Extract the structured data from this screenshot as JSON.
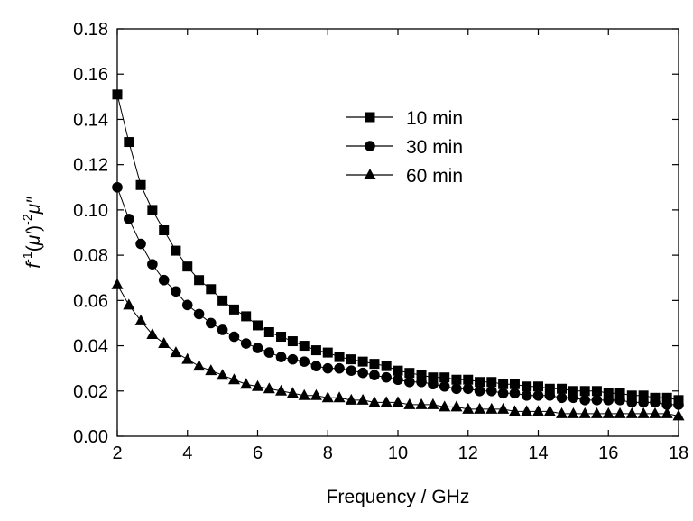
{
  "chart_data": {
    "type": "line",
    "xlabel": "Frequency / GHz",
    "ylabel": {
      "f": "f",
      "exp1": "-1",
      "open": "(",
      "mu1": "μ",
      "prime": "′",
      "close": ")",
      "exp2": "-2",
      "mu2": "μ",
      "dprime": "″"
    },
    "xlim": [
      2,
      18
    ],
    "ylim": [
      0,
      0.18
    ],
    "x_ticks": [
      "2",
      "4",
      "6",
      "8",
      "10",
      "12",
      "14",
      "16",
      "18"
    ],
    "y_ticks": [
      "0.00",
      "0.02",
      "0.04",
      "0.06",
      "0.08",
      "0.10",
      "0.12",
      "0.14",
      "0.16",
      "0.18"
    ],
    "x_tick_values": [
      2,
      4,
      6,
      8,
      10,
      12,
      14,
      16,
      18
    ],
    "y_tick_values": [
      0,
      0.02,
      0.04,
      0.06,
      0.08,
      0.1,
      0.12,
      0.14,
      0.16,
      0.18
    ],
    "grid": false,
    "legend": "top-center",
    "x": [
      2.0,
      2.33,
      2.67,
      3.0,
      3.33,
      3.67,
      4.0,
      4.33,
      4.67,
      5.0,
      5.33,
      5.67,
      6.0,
      6.33,
      6.67,
      7.0,
      7.33,
      7.67,
      8.0,
      8.33,
      8.67,
      9.0,
      9.33,
      9.67,
      10.0,
      10.33,
      10.67,
      11.0,
      11.33,
      11.67,
      12.0,
      12.33,
      12.67,
      13.0,
      13.33,
      13.67,
      14.0,
      14.33,
      14.67,
      15.0,
      15.33,
      15.67,
      16.0,
      16.33,
      16.67,
      17.0,
      17.33,
      17.67,
      18.0
    ],
    "series": [
      {
        "name": "10 min",
        "marker": "square",
        "values": [
          0.151,
          0.13,
          0.111,
          0.1,
          0.091,
          0.082,
          0.075,
          0.069,
          0.065,
          0.06,
          0.056,
          0.053,
          0.049,
          0.046,
          0.044,
          0.042,
          0.04,
          0.038,
          0.037,
          0.035,
          0.034,
          0.033,
          0.032,
          0.031,
          0.029,
          0.028,
          0.027,
          0.026,
          0.026,
          0.025,
          0.025,
          0.024,
          0.024,
          0.023,
          0.023,
          0.022,
          0.022,
          0.021,
          0.021,
          0.02,
          0.02,
          0.02,
          0.019,
          0.019,
          0.018,
          0.018,
          0.017,
          0.017,
          0.016
        ]
      },
      {
        "name": "30 min",
        "marker": "circle",
        "values": [
          0.11,
          0.096,
          0.085,
          0.076,
          0.069,
          0.064,
          0.058,
          0.054,
          0.05,
          0.047,
          0.044,
          0.041,
          0.039,
          0.037,
          0.035,
          0.034,
          0.033,
          0.031,
          0.03,
          0.03,
          0.029,
          0.028,
          0.027,
          0.026,
          0.025,
          0.024,
          0.024,
          0.023,
          0.022,
          0.021,
          0.021,
          0.02,
          0.02,
          0.019,
          0.019,
          0.018,
          0.018,
          0.018,
          0.017,
          0.017,
          0.016,
          0.016,
          0.016,
          0.016,
          0.015,
          0.015,
          0.015,
          0.014,
          0.014
        ]
      },
      {
        "name": "60 min",
        "marker": "triangle",
        "values": [
          0.067,
          0.058,
          0.051,
          0.045,
          0.041,
          0.037,
          0.034,
          0.031,
          0.029,
          0.027,
          0.025,
          0.023,
          0.022,
          0.021,
          0.02,
          0.019,
          0.018,
          0.018,
          0.017,
          0.017,
          0.016,
          0.016,
          0.015,
          0.015,
          0.015,
          0.014,
          0.014,
          0.014,
          0.013,
          0.013,
          0.012,
          0.012,
          0.012,
          0.012,
          0.011,
          0.011,
          0.011,
          0.011,
          0.01,
          0.01,
          0.01,
          0.01,
          0.01,
          0.01,
          0.01,
          0.01,
          0.01,
          0.01,
          0.009
        ]
      }
    ]
  }
}
